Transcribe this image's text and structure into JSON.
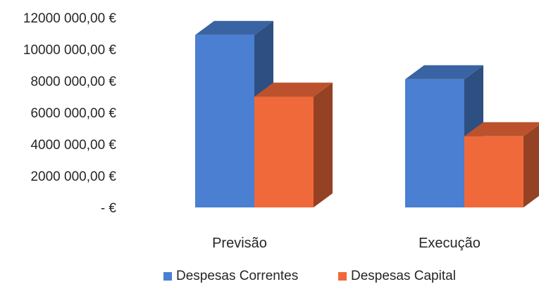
{
  "chart_data": {
    "type": "bar",
    "style": "3d-column",
    "title": "",
    "xlabel": "",
    "ylabel": "",
    "categories": [
      "Previsão",
      "Execução"
    ],
    "series": [
      {
        "name": "Despesas Correntes",
        "values": [
          10900000,
          8100000
        ],
        "color": "#4a7fd1"
      },
      {
        "name": "Despesas Capital",
        "values": [
          7000000,
          4500000
        ],
        "color": "#f0693a"
      }
    ],
    "ylim": [
      0,
      12000000
    ],
    "y_ticks": [
      0,
      2000000,
      4000000,
      6000000,
      8000000,
      10000000,
      12000000
    ],
    "y_tick_labels": [
      "-   €",
      "2000 000,00 €",
      "4000 000,00 €",
      "6000 000,00 €",
      "8000 000,00 €",
      "10000 000,00 €",
      "12000 000,00 €"
    ],
    "grid": false,
    "legend": "bottom"
  }
}
